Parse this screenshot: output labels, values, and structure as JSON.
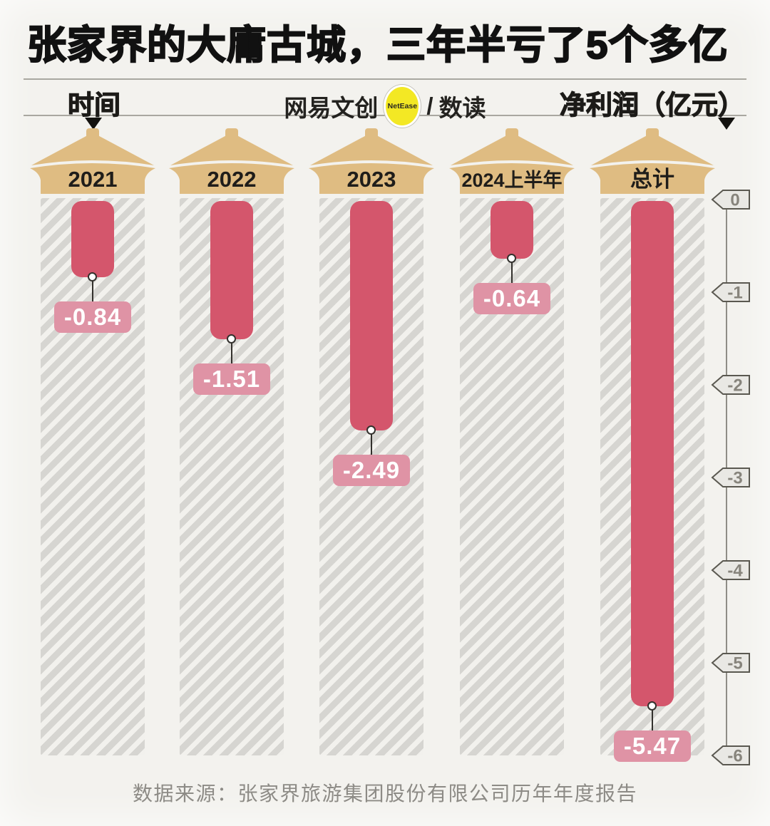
{
  "title": "张家界的大庸古城，三年半亏了5个多亿",
  "header": {
    "left_label": "时间",
    "right_label": "净利润（亿元）",
    "logo_brand": "网易文创",
    "logo_badge": "NetEase",
    "logo_separator": "/",
    "logo_section": "数读"
  },
  "chart_data": {
    "type": "bar",
    "title": "张家界的大庸古城，三年半亏了5个多亿",
    "categories": [
      "2021",
      "2022",
      "2023",
      "2024上半年",
      "总计"
    ],
    "values": [
      -0.84,
      -1.51,
      -2.49,
      -0.64,
      -5.47
    ],
    "value_labels": [
      "-0.84",
      "-1.51",
      "-2.49",
      "-0.64",
      "-5.47"
    ],
    "xlabel": "时间",
    "ylabel": "净利润（亿元）",
    "y_ticks": [
      "0",
      "-1",
      "-2",
      "-3",
      "-4",
      "-5",
      "-6"
    ],
    "ylim": [
      -6,
      0
    ],
    "grid": false,
    "legend_position": "none",
    "colors": {
      "bar": "#d4566c",
      "value_chip_bg": "#df93a5",
      "value_chip_text": "#ffffff",
      "roof": "#dfbc82",
      "roof_text": "#1f1d1a",
      "hatch_stripe": "#d6d5d1",
      "hatch_bg": "#f2f1ed",
      "background": "#f3f2ee",
      "axis": "#8f8d86",
      "tick_fill": "#e9e8e4",
      "tick_border": "#5a5850",
      "tick_text": "#87847c",
      "connector": "#33312d",
      "badge_yellow": "#f3e824",
      "title_text": "#111111"
    }
  },
  "source": "数据来源：张家界旅游集团股份有限公司历年年度报告"
}
